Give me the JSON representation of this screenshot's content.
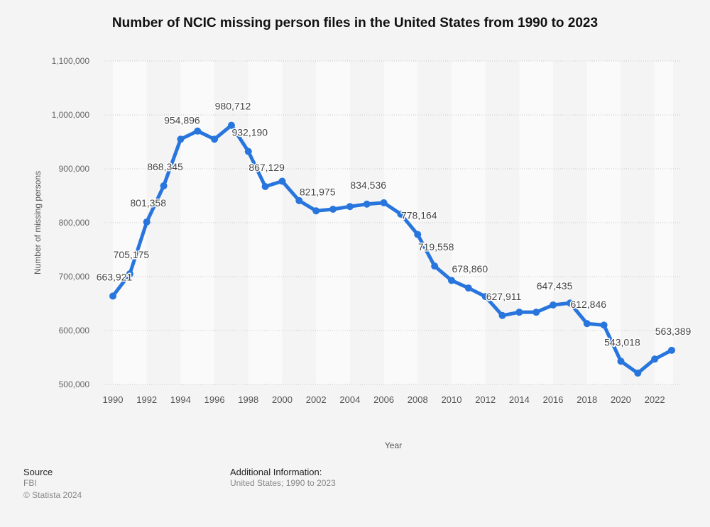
{
  "chart_data": {
    "type": "line",
    "title": "Number of NCIC missing person files in the United States from 1990 to 2023",
    "xlabel": "Year",
    "ylabel": "Number of missing persons",
    "ylim": [
      500000,
      1100000
    ],
    "yticks": [
      500000,
      600000,
      700000,
      800000,
      900000,
      1000000,
      1100000
    ],
    "ytick_labels": [
      "500,000",
      "600,000",
      "700,000",
      "800,000",
      "900,000",
      "1,000,000",
      "1,100,000"
    ],
    "xticks": [
      1990,
      1992,
      1994,
      1996,
      1998,
      2000,
      2002,
      2004,
      2006,
      2008,
      2010,
      2012,
      2014,
      2016,
      2018,
      2020,
      2022
    ],
    "grid": true,
    "color": "#2876dd",
    "x": [
      1990,
      1991,
      1992,
      1993,
      1994,
      1995,
      1996,
      1997,
      1998,
      1999,
      2000,
      2001,
      2002,
      2003,
      2004,
      2005,
      2006,
      2007,
      2008,
      2009,
      2010,
      2011,
      2012,
      2013,
      2014,
      2015,
      2016,
      2017,
      2018,
      2019,
      2020,
      2021,
      2022,
      2023
    ],
    "values": [
      663921,
      705175,
      801358,
      868345,
      954896,
      970000,
      955000,
      980712,
      932190,
      867129,
      877000,
      841000,
      821975,
      825000,
      830000,
      834536,
      837000,
      816000,
      778164,
      719558,
      693000,
      678860,
      663000,
      627911,
      634000,
      634000,
      647435,
      651000,
      612846,
      610000,
      543018,
      521000,
      547000,
      563389
    ],
    "data_labels": [
      "663,921",
      "705,175",
      "801,358",
      "868,345",
      "954,896",
      null,
      null,
      "980,712",
      "932,190",
      "867,129",
      null,
      null,
      "821,975",
      null,
      null,
      "834,536",
      null,
      null,
      "778,164",
      "719,558",
      null,
      "678,860",
      null,
      "627,911",
      null,
      null,
      "647,435",
      null,
      "612,846",
      null,
      "543,018",
      null,
      null,
      "563,389"
    ]
  },
  "footer": {
    "source_heading": "Source",
    "source": "FBI",
    "copyright": "© Statista 2024",
    "additional_heading": "Additional Information:",
    "additional": "United States; 1990 to 2023"
  }
}
